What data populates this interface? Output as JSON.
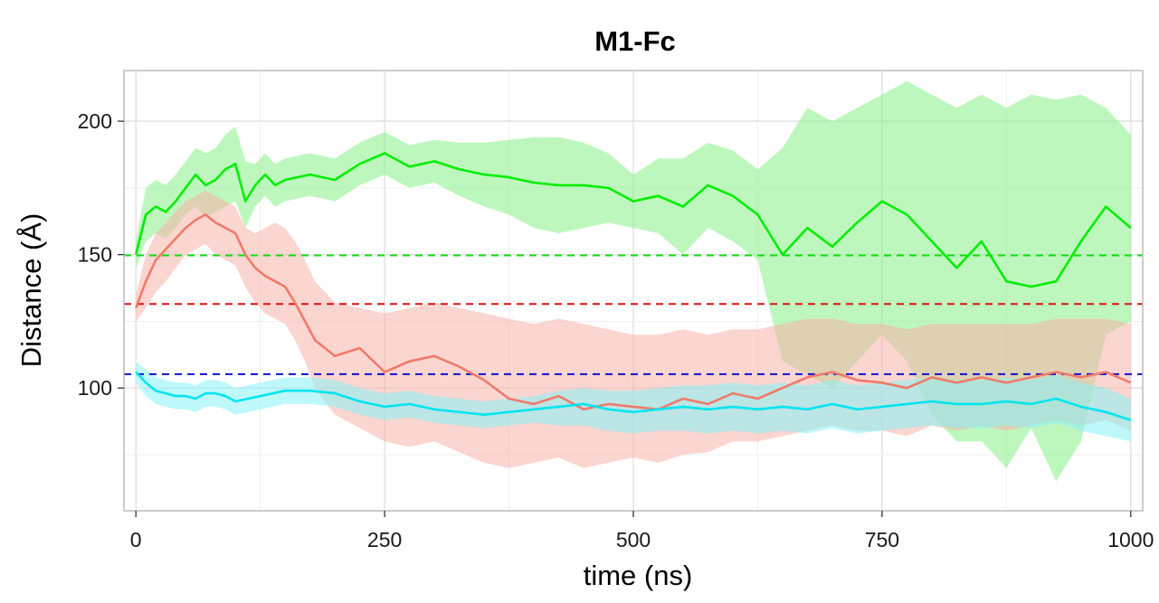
{
  "chart_data": {
    "type": "line",
    "title": "M1-Fc",
    "xlabel": "time (ns)",
    "ylabel": "Distance (Å)",
    "xlim": [
      -12,
      1012
    ],
    "ylim": [
      54,
      219
    ],
    "x_ticks": [
      0,
      250,
      500,
      750,
      1000
    ],
    "y_ticks": [
      100,
      150,
      200
    ],
    "x_tick_labels": [
      "0",
      "250",
      "500",
      "750",
      "1000"
    ],
    "y_tick_labels": [
      "100",
      "150",
      "200"
    ],
    "grid": true,
    "legend": "none",
    "reference_lines": [
      {
        "y": 149.7,
        "color": "#11dd11"
      },
      {
        "y": 131.5,
        "color": "#dd1111"
      },
      {
        "y": 105.2,
        "color": "#1111cc"
      }
    ],
    "series": [
      {
        "color": "#00ee00",
        "band_color": "#88f088",
        "x": [
          0,
          10,
          20,
          30,
          40,
          50,
          60,
          70,
          80,
          90,
          100,
          110,
          120,
          130,
          140,
          150,
          175,
          200,
          225,
          250,
          275,
          300,
          325,
          350,
          375,
          400,
          425,
          450,
          475,
          500,
          525,
          550,
          575,
          600,
          625,
          650,
          675,
          700,
          725,
          750,
          775,
          800,
          825,
          850,
          875,
          900,
          925,
          950,
          975,
          1000
        ],
        "y": [
          150,
          165,
          168,
          166,
          170,
          175,
          180,
          176,
          178,
          182,
          184,
          170,
          176,
          180,
          176,
          178,
          180,
          178,
          184,
          188,
          183,
          185,
          182,
          180,
          179,
          177,
          176,
          176,
          175,
          170,
          172,
          168,
          176,
          172,
          165,
          150,
          160,
          153,
          162,
          170,
          165,
          155,
          145,
          155,
          140,
          138,
          140,
          155,
          168,
          160
        ],
        "lower": [
          145,
          155,
          158,
          156,
          160,
          165,
          168,
          164,
          166,
          168,
          170,
          160,
          168,
          172,
          168,
          170,
          172,
          170,
          176,
          180,
          175,
          177,
          172,
          168,
          165,
          160,
          158,
          160,
          162,
          160,
          158,
          150,
          160,
          155,
          148,
          110,
          105,
          100,
          110,
          120,
          110,
          90,
          80,
          80,
          70,
          85,
          65,
          80,
          120,
          125
        ],
        "upper": [
          155,
          175,
          178,
          176,
          180,
          185,
          190,
          188,
          190,
          195,
          198,
          185,
          184,
          188,
          184,
          186,
          188,
          186,
          192,
          196,
          191,
          193,
          192,
          192,
          193,
          194,
          194,
          192,
          188,
          180,
          186,
          186,
          192,
          189,
          182,
          190,
          205,
          200,
          205,
          210,
          215,
          210,
          205,
          210,
          205,
          210,
          208,
          210,
          205,
          195
        ]
      },
      {
        "color": "#f07a6a",
        "band_color": "#f7b3aa",
        "x": [
          0,
          10,
          20,
          30,
          40,
          50,
          60,
          70,
          80,
          90,
          100,
          110,
          120,
          130,
          140,
          150,
          160,
          170,
          180,
          190,
          200,
          225,
          250,
          275,
          300,
          325,
          350,
          375,
          400,
          425,
          450,
          475,
          500,
          525,
          550,
          575,
          600,
          625,
          650,
          675,
          700,
          725,
          750,
          775,
          800,
          825,
          850,
          875,
          900,
          925,
          950,
          975,
          1000
        ],
        "y": [
          130,
          140,
          148,
          152,
          156,
          160,
          163,
          165,
          162,
          160,
          158,
          150,
          145,
          142,
          140,
          138,
          132,
          125,
          118,
          115,
          112,
          115,
          106,
          110,
          112,
          108,
          103,
          96,
          94,
          97,
          92,
          94,
          93,
          92,
          96,
          94,
          98,
          96,
          100,
          104,
          106,
          103,
          102,
          100,
          104,
          102,
          104,
          102,
          104,
          106,
          104,
          106,
          102
        ],
        "lower": [
          125,
          130,
          136,
          140,
          145,
          150,
          152,
          154,
          150,
          148,
          146,
          138,
          132,
          128,
          126,
          124,
          118,
          110,
          100,
          95,
          90,
          85,
          80,
          78,
          80,
          76,
          72,
          70,
          72,
          74,
          70,
          72,
          74,
          72,
          75,
          76,
          80,
          80,
          82,
          84,
          86,
          84,
          84,
          82,
          86,
          84,
          86,
          84,
          86,
          88,
          86,
          88,
          84
        ],
        "upper": [
          135,
          150,
          158,
          162,
          166,
          170,
          172,
          174,
          172,
          170,
          168,
          160,
          158,
          160,
          162,
          160,
          155,
          148,
          140,
          136,
          132,
          130,
          128,
          130,
          132,
          130,
          128,
          126,
          124,
          126,
          124,
          122,
          120,
          120,
          122,
          120,
          122,
          122,
          124,
          126,
          126,
          124,
          124,
          122,
          124,
          124,
          124,
          124,
          124,
          126,
          126,
          126,
          124
        ]
      },
      {
        "color": "#00e5ee",
        "band_color": "#88f2f6",
        "x": [
          0,
          10,
          20,
          30,
          40,
          50,
          60,
          70,
          80,
          90,
          100,
          125,
          150,
          175,
          200,
          225,
          250,
          275,
          300,
          325,
          350,
          375,
          400,
          425,
          450,
          475,
          500,
          525,
          550,
          575,
          600,
          625,
          650,
          675,
          700,
          725,
          750,
          775,
          800,
          825,
          850,
          875,
          900,
          925,
          950,
          975,
          1000
        ],
        "y": [
          106,
          102,
          99,
          98,
          97,
          97,
          96,
          98,
          98,
          97,
          95,
          97,
          99,
          99,
          98,
          95,
          93,
          94,
          92,
          91,
          90,
          91,
          92,
          93,
          94,
          92,
          91,
          92,
          93,
          92,
          93,
          92,
          93,
          92,
          94,
          92,
          93,
          94,
          95,
          94,
          94,
          95,
          94,
          96,
          93,
          91,
          88
        ],
        "lower": [
          102,
          97,
          94,
          93,
          92,
          92,
          91,
          93,
          93,
          92,
          90,
          92,
          94,
          94,
          93,
          90,
          88,
          89,
          87,
          86,
          85,
          86,
          87,
          86,
          86,
          84,
          83,
          84,
          84,
          83,
          84,
          83,
          84,
          83,
          85,
          83,
          84,
          85,
          86,
          85,
          85,
          86,
          85,
          87,
          84,
          82,
          80
        ],
        "upper": [
          110,
          107,
          104,
          103,
          102,
          102,
          101,
          103,
          103,
          102,
          100,
          102,
          104,
          104,
          103,
          100,
          98,
          99,
          97,
          96,
          95,
          96,
          97,
          99,
          100,
          99,
          99,
          100,
          101,
          101,
          102,
          101,
          102,
          101,
          103,
          101,
          102,
          103,
          104,
          103,
          103,
          104,
          103,
          105,
          102,
          100,
          96
        ]
      }
    ]
  }
}
